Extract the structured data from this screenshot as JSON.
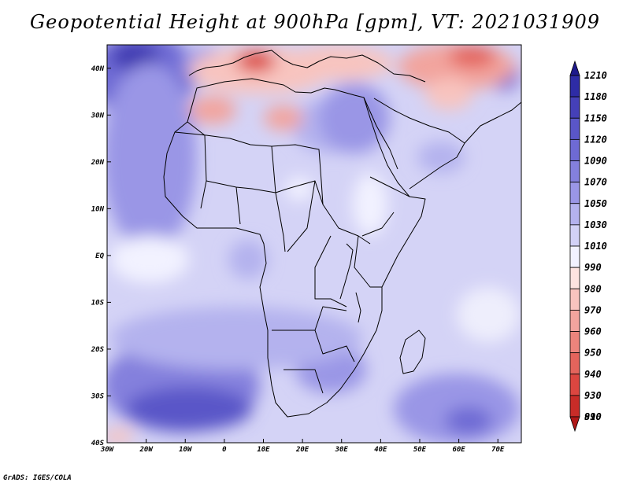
{
  "title": "Geopotential Height at 900hPa [gpm], VT: 2021031909",
  "credit": "GrADS: IGES/COLA",
  "map": {
    "lon_range": [
      -30,
      76
    ],
    "lat_range": [
      -40,
      45
    ],
    "lon_ticks": [
      {
        "value": -30,
        "label": "30W"
      },
      {
        "value": -20,
        "label": "20W"
      },
      {
        "value": -10,
        "label": "10W"
      },
      {
        "value": 0,
        "label": "0"
      },
      {
        "value": 10,
        "label": "10E"
      },
      {
        "value": 20,
        "label": "20E"
      },
      {
        "value": 30,
        "label": "30E"
      },
      {
        "value": 40,
        "label": "40E"
      },
      {
        "value": 50,
        "label": "50E"
      },
      {
        "value": 60,
        "label": "60E"
      },
      {
        "value": 70,
        "label": "70E"
      }
    ],
    "lat_ticks": [
      {
        "value": 40,
        "label": "40N"
      },
      {
        "value": 30,
        "label": "30N"
      },
      {
        "value": 20,
        "label": "20N"
      },
      {
        "value": 10,
        "label": "10N"
      },
      {
        "value": 0,
        "label": "EQ"
      },
      {
        "value": -10,
        "label": "10S"
      },
      {
        "value": -20,
        "label": "20S"
      },
      {
        "value": -30,
        "label": "30S"
      },
      {
        "value": -40,
        "label": "40S"
      }
    ]
  },
  "colorbar": {
    "levels": [
      "1210",
      "1180",
      "1150",
      "1120",
      "1090",
      "1070",
      "1050",
      "1030",
      "1010",
      "990",
      "980",
      "970",
      "960",
      "950",
      "940",
      "930",
      "910",
      "890"
    ],
    "colors": [
      "#1e1a8c",
      "#2e2ca6",
      "#4540b8",
      "#5a56c8",
      "#6e6ad4",
      "#8480dd",
      "#9a96e6",
      "#b4b2ee",
      "#d2d1f6",
      "#f2f2ff",
      "#fde3e0",
      "#f8c4bf",
      "#f2a49e",
      "#ec847c",
      "#e4645c",
      "#dc4640",
      "#c82c28",
      "#b01818"
    ]
  }
}
